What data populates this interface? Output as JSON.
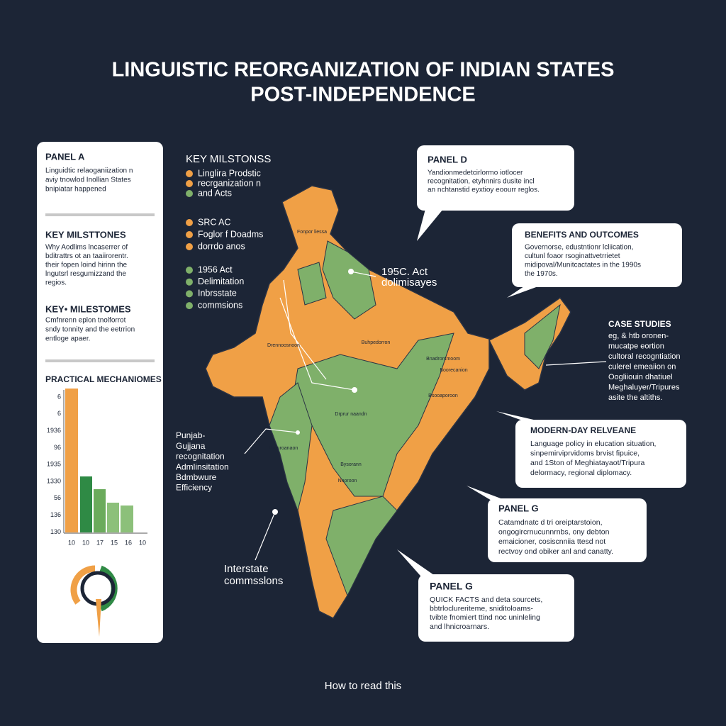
{
  "title": [
    "LINGUISTIC REORGANIZATION OF INDIAN STATES",
    "POST-INDEPENDENCE"
  ],
  "panel_a": {
    "title": "PANEL A",
    "lines": [
      "Linguidtic relaoganiization n",
      "aviy tnowlod Inollian States",
      "bnipiatar happened"
    ]
  },
  "left_milestones_1": {
    "title": "KEY MILSTTONES",
    "lines": [
      "Why Aodlims lncaserrer of",
      "bditrattrs ot an taaiirorentr.",
      "their fopen loind hirinn the",
      "lngutsrl resgumizzand the",
      "regios."
    ]
  },
  "left_milestones_2": {
    "title": "KEY• MILESTOMES",
    "lines": [
      "Cmfnrenn eplon tnolforrot",
      "sndy tonnity and the eetrrion",
      "entloge apaer."
    ]
  },
  "mechanisms": {
    "title": "PRACTICAL MECHANIOMES",
    "y_labels": [
      "6",
      "6",
      "1936",
      "96",
      "1935",
      "1330",
      "56",
      "136",
      "130"
    ],
    "x_labels": [
      "10",
      "10",
      "17",
      "15",
      "16",
      "10"
    ]
  },
  "key_milestones": {
    "title": "KEY MILSTONSS",
    "group_1": [
      "Linglira Prodstic",
      "recrganization n",
      "and Acts"
    ],
    "group_2": [
      "SRC AC",
      "Foglor f Doadms",
      "dorrdo anos"
    ],
    "group_3": [
      "1956 Act",
      "Delimitation",
      "Inbrsstate",
      "commsions"
    ]
  },
  "map_labels": [
    "Fonpor liessa",
    "Drennoosnoon",
    "Buhpedorron",
    "Bnadrorsmoom",
    "Boorecanion",
    "Drprur naandn",
    "Pronroanaon",
    "Bysorann",
    "Nnoroon",
    "Bsooaporoon"
  ],
  "act_label": [
    "195C. Act",
    "dolimisayes"
  ],
  "punjab_label": [
    "Punjab-",
    "Gujjana",
    "recognitation",
    "Admlinsitation",
    "Bdmbwure",
    "Efficiency"
  ],
  "interstate_label": [
    "Interstate",
    "commsslons"
  ],
  "panel_d": {
    "title": "PANEL D",
    "lines": [
      "Yandionmedetcirlormo iotlocer",
      "recognitation, etyhnnirs dusite incl",
      "an nchtanstid eyxtioy eoourr reglos."
    ]
  },
  "benefits": {
    "title": "BENEFITS AND OUTCOMES",
    "lines": [
      "Governorse, edustntionr lcliication,",
      "cultunl foaor rsoginattvetrrietet",
      "midipoval/Munitcactates in the 1990s",
      "the 1970s."
    ]
  },
  "case_studies": {
    "title": "CASE STUDIES",
    "lines": [
      "eg, & htb oronen-",
      "mucatpe eortion",
      "cultoral recogntiation",
      "culerel emeaiion on",
      "Oogliiouin dhatiuel",
      "Meghaluyer/Tripures",
      "asite the altiths."
    ]
  },
  "modern_day": {
    "title": "MODERN-DAY RELVEANE",
    "lines": [
      "Language policy in elucation situation,",
      "sinpemirviprvidoms brvist fipuice,",
      "and 1Ston of Meghiatayaot/Tripura",
      "delormacy, regional diplomacy."
    ]
  },
  "panel_g": {
    "title": "PANEL G",
    "lines": [
      "Catamdnatc d tri oreiptarstoion,",
      "ongogircrnucunnrnbs, ony debton",
      "emaicioner, cosiscnniia ttesd not",
      "rectvoy ond obiker anl and canatty."
    ]
  },
  "panel_g2": {
    "title": "PANEL G",
    "lines": [
      "QUICK FACTS and deta sourcets,",
      "bbtrloclureriteme, sniditoloams-",
      "tvibte fnomiert ttind noc uninleling",
      "and lhnicroarnars."
    ]
  },
  "footer": "How to read this"
}
